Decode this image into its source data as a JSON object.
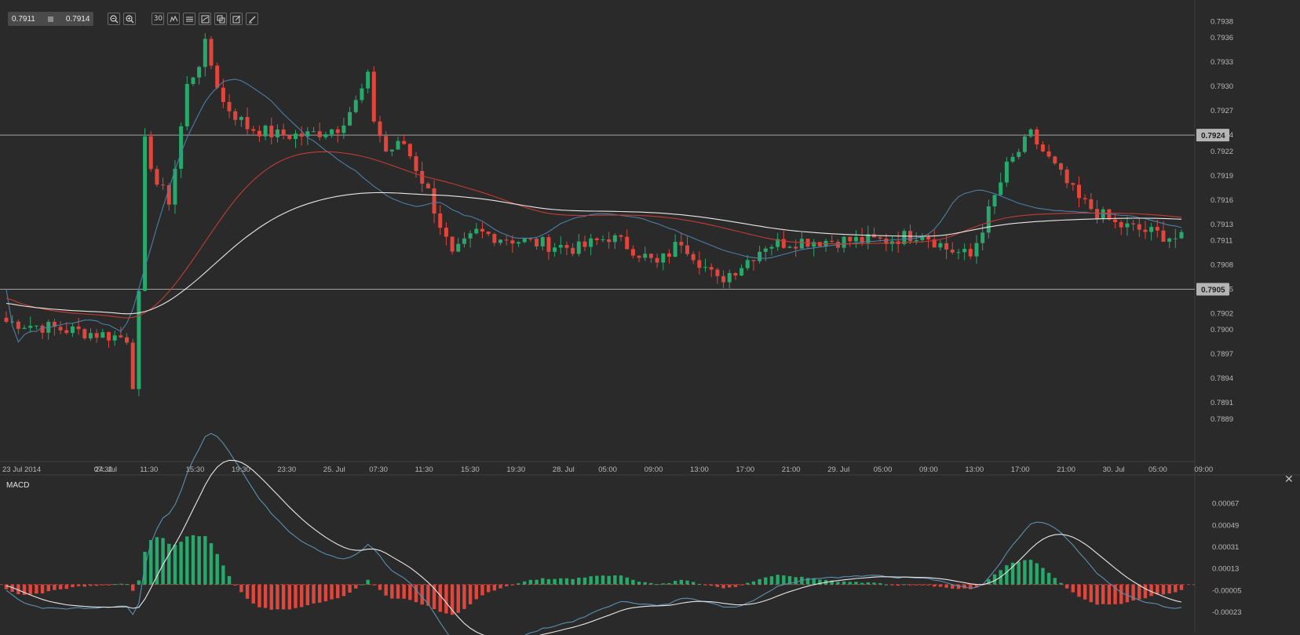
{
  "toolbar": {
    "bid": "0.7911",
    "ask": "0.7914",
    "icons": [
      "zoom-out-icon",
      "zoom-in-icon",
      "timeframe-30-icon",
      "indicators-icon",
      "settings-icon",
      "chart-type-icon",
      "copy-icon",
      "edit-icon",
      "draw-icon"
    ],
    "timeframe_label": "30"
  },
  "colors": {
    "background": "#2a2a2a",
    "bull": "#27a96b",
    "bear": "#e0463c",
    "ema_fast": "#4a7fa8",
    "ema_slow": "#c23c34",
    "sma_long": "#e8e8e8",
    "level_line": "#a0a0a0",
    "macd_line": "#5b8fb0",
    "signal_line": "#e8e8e8"
  },
  "chart_data": [
    {
      "type": "candlestick",
      "price_axis": {
        "ticks": [
          "0.7938",
          "0.7936",
          "0.7933",
          "0.7930",
          "0.7927",
          "0.7924",
          "0.7922",
          "0.7919",
          "0.7916",
          "0.7913",
          "0.7911",
          "0.7908",
          "0.7905",
          "0.7902",
          "0.7900",
          "0.7897",
          "0.7894",
          "0.7891",
          "0.7889"
        ],
        "range": [
          0.78855,
          0.79395
        ]
      },
      "time_axis": {
        "labels": [
          "23 Jul 2014",
          "24. Jul",
          "07:30",
          "11:30",
          "15:30",
          "19:30",
          "23:30",
          "25. Jul",
          "07:30",
          "11:30",
          "15:30",
          "19:30",
          "28. Jul",
          "05:00",
          "09:00",
          "13:00",
          "17:00",
          "21:00",
          "29. Jul",
          "05:00",
          "09:00",
          "13:00",
          "17:00",
          "21:00",
          "30. Jul",
          "05:00",
          "09:00"
        ]
      },
      "horizontal_levels": [
        "0.7924",
        "0.7905"
      ],
      "series_ema_fast": [
        0.7905,
        0.79005,
        0.78985,
        0.78994,
        0.78998,
        0.78998,
        0.79003,
        0.79002,
        0.79005,
        0.79006,
        0.79008,
        0.79008,
        0.7901,
        0.79012,
        0.79012,
        0.79011,
        0.79007,
        0.79006,
        0.79002,
        0.78998,
        0.79008,
        0.79025,
        0.79051,
        0.79077,
        0.79101,
        0.79127,
        0.79151,
        0.79174,
        0.79197,
        0.79218,
        0.79237,
        0.79252,
        0.79267,
        0.79281,
        0.79291,
        0.79299,
        0.79306,
        0.79308,
        0.79309,
        0.79307,
        0.79303,
        0.79298,
        0.79293,
        0.79288,
        0.79282,
        0.79274,
        0.79266,
        0.79259,
        0.79252,
        0.79245,
        0.79237,
        0.79233,
        0.79227,
        0.79221,
        0.79216,
        0.7921,
        0.79205,
        0.792,
        0.79196,
        0.79189,
        0.79183,
        0.79177,
        0.79172,
        0.79166,
        0.79162,
        0.79159,
        0.79156,
        0.79154,
        0.79152,
        0.79153,
        0.79155,
        0.79157,
        0.79157,
        0.79153,
        0.79148,
        0.79145,
        0.79141,
        0.7914,
        0.79137,
        0.79134,
        0.79129,
        0.79124,
        0.7912,
        0.79117,
        0.79114,
        0.79113,
        0.79113,
        0.79113,
        0.79114,
        0.79117,
        0.79121,
        0.79126,
        0.79131,
        0.79134,
        0.79137,
        0.79139,
        0.7914,
        0.79142,
        0.79143,
        0.79143,
        0.79143,
        0.79142,
        0.79141,
        0.7914,
        0.79139,
        0.79138,
        0.79136,
        0.79133,
        0.79131,
        0.79128,
        0.79125,
        0.79123,
        0.79119,
        0.79116,
        0.79113,
        0.7911,
        0.79107,
        0.79104,
        0.79101,
        0.79098,
        0.79096,
        0.79094,
        0.79092,
        0.7909,
        0.79089,
        0.79088,
        0.79088,
        0.79089,
        0.79091,
        0.79093,
        0.79095,
        0.79097,
        0.79099,
        0.791,
        0.79101,
        0.79102,
        0.79103,
        0.79104,
        0.79105,
        0.79106,
        0.79106,
        0.79107,
        0.79108,
        0.79109,
        0.79109,
        0.7911,
        0.7911,
        0.79111,
        0.79111,
        0.79112,
        0.79112,
        0.79113,
        0.79115,
        0.79118,
        0.79124,
        0.79133,
        0.79144,
        0.79156,
        0.79164,
        0.79168,
        0.7917,
        0.79172,
        0.79172,
        0.7917,
        0.79168,
        0.79165,
        0.79162,
        0.79159,
        0.79156,
        0.79154,
        0.79152,
        0.7915,
        0.79149,
        0.79148,
        0.79147,
        0.79147,
        0.79146,
        0.79146,
        0.79145,
        0.79145,
        0.79144,
        0.79144,
        0.79143,
        0.79143,
        0.79142,
        0.79141,
        0.79141,
        0.7914,
        0.79138,
        0.79137,
        0.79135,
        0.79133,
        0.79131,
        0.79129,
        0.79128,
        0.79126
      ],
      "note": "fast EMA values per candle (see candles for OHLC)"
    },
    {
      "type": "bar",
      "title": "MACD",
      "value_axis": {
        "ticks": [
          "0.00067",
          "0.00049",
          "0.00031",
          "0.00013",
          "-0.00005",
          "-0.00023"
        ],
        "range": [
          -0.00034,
          0.00085
        ]
      }
    }
  ]
}
